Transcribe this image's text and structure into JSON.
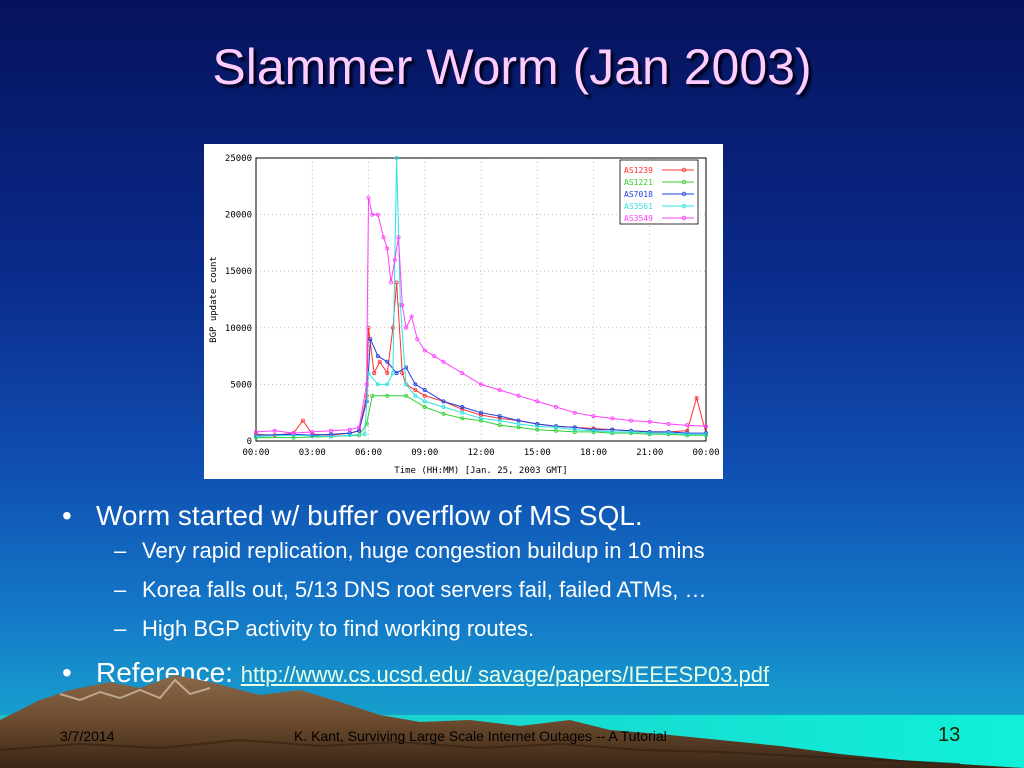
{
  "slide": {
    "title": "Slammer Worm (Jan 2003)",
    "footer_date": "3/7/2014",
    "footer_center": "K. Kant, Surviving Large Scale Internet Outages -- A Tutorial",
    "page_number": "13"
  },
  "bullets": {
    "main": "Worm started w/ buffer overflow of MS SQL.",
    "sub": [
      "Very rapid replication, huge congestion buildup in 10 mins",
      "Korea falls out, 5/13 DNS root servers fail, failed ATMs, …",
      "High BGP activity to find working routes."
    ],
    "reference_label": "Reference:",
    "reference_link": "http://www.cs.ucsd.edu/ savage/papers/IEEESP03.pdf"
  },
  "glyphs": {
    "bullet": "•",
    "dash": "–"
  },
  "chart_data": {
    "type": "line",
    "xlabel": "Time (HH:MM) [Jan. 25, 2003 GMT]",
    "ylabel": "BGP update count",
    "xlim": [
      0,
      24
    ],
    "ylim": [
      0,
      25000
    ],
    "x_ticks": [
      "00:00",
      "03:00",
      "06:00",
      "09:00",
      "12:00",
      "15:00",
      "18:00",
      "21:00",
      "00:00"
    ],
    "y_ticks": [
      "0",
      "5000",
      "10000",
      "15000",
      "20000",
      "25000"
    ],
    "grid": true,
    "legend_position": "top-right",
    "series": [
      {
        "name": "AS1239",
        "color": "#ff3030",
        "x": [
          0,
          1,
          2,
          2.5,
          3,
          4,
          5,
          5.5,
          5.9,
          6,
          6.3,
          6.6,
          7,
          7.3,
          7.5,
          7.8,
          8,
          8.5,
          9,
          10,
          11,
          12,
          13,
          14,
          15,
          16,
          17,
          18,
          19,
          20,
          21,
          22,
          23,
          23.5,
          24
        ],
        "y": [
          600,
          500,
          700,
          1800,
          600,
          500,
          700,
          900,
          4000,
          10000,
          6000,
          7000,
          6000,
          10000,
          14000,
          6000,
          5000,
          4500,
          4000,
          3500,
          2800,
          2300,
          2000,
          1800,
          1500,
          1300,
          1200,
          1100,
          1000,
          900,
          800,
          800,
          900,
          3800,
          700
        ]
      },
      {
        "name": "AS1221",
        "color": "#30d030",
        "x": [
          0,
          2,
          4,
          5.5,
          5.9,
          6.2,
          7,
          8,
          9,
          10,
          11,
          12,
          13,
          14,
          15,
          16,
          17,
          18,
          19,
          20,
          21,
          22,
          23,
          24
        ],
        "y": [
          300,
          300,
          400,
          500,
          1500,
          4000,
          4000,
          4000,
          3000,
          2400,
          2000,
          1800,
          1400,
          1200,
          1000,
          900,
          800,
          800,
          700,
          700,
          600,
          600,
          500,
          500
        ]
      },
      {
        "name": "AS7018",
        "color": "#2040e0",
        "x": [
          0,
          2,
          3,
          4,
          5,
          5.5,
          5.9,
          6.1,
          6.5,
          7,
          7.5,
          8,
          8.5,
          9,
          10,
          11,
          12,
          13,
          14,
          15,
          16,
          17,
          18,
          19,
          20,
          21,
          22,
          23,
          24
        ],
        "y": [
          500,
          600,
          500,
          600,
          700,
          900,
          3500,
          9000,
          7500,
          7000,
          6000,
          6500,
          5000,
          4500,
          3500,
          3000,
          2500,
          2200,
          1800,
          1500,
          1300,
          1200,
          1000,
          1000,
          900,
          800,
          800,
          700,
          700
        ]
      },
      {
        "name": "AS3561",
        "color": "#30e0e0",
        "x": [
          0,
          2,
          4,
          5,
          5.8,
          6,
          6.5,
          7,
          7.3,
          7.5,
          7.7,
          8,
          8.5,
          9,
          10,
          11,
          12,
          13,
          14,
          15,
          16,
          17,
          18,
          19,
          20,
          21,
          22,
          23,
          24
        ],
        "y": [
          400,
          500,
          400,
          500,
          600,
          6000,
          5000,
          5000,
          6000,
          25000,
          12000,
          5000,
          4000,
          3500,
          3000,
          2500,
          2000,
          1800,
          1500,
          1300,
          1200,
          1000,
          900,
          800,
          800,
          700,
          700,
          600,
          600
        ]
      },
      {
        "name": "AS3549",
        "color": "#ff40ff",
        "x": [
          0,
          1,
          2,
          3,
          4,
          5,
          5.5,
          5.9,
          6,
          6.2,
          6.5,
          6.8,
          7,
          7.2,
          7.4,
          7.6,
          7.8,
          8,
          8.3,
          8.6,
          9,
          9.5,
          10,
          11,
          12,
          13,
          14,
          15,
          16,
          17,
          18,
          19,
          20,
          21,
          22,
          23,
          24
        ],
        "y": [
          800,
          900,
          700,
          800,
          900,
          1000,
          1200,
          5000,
          21500,
          20000,
          20000,
          18000,
          17000,
          14000,
          16000,
          18000,
          12000,
          10000,
          11000,
          9000,
          8000,
          7500,
          7000,
          6000,
          5000,
          4500,
          4000,
          3500,
          3000,
          2500,
          2200,
          2000,
          1800,
          1700,
          1500,
          1400,
          1300
        ]
      }
    ]
  }
}
